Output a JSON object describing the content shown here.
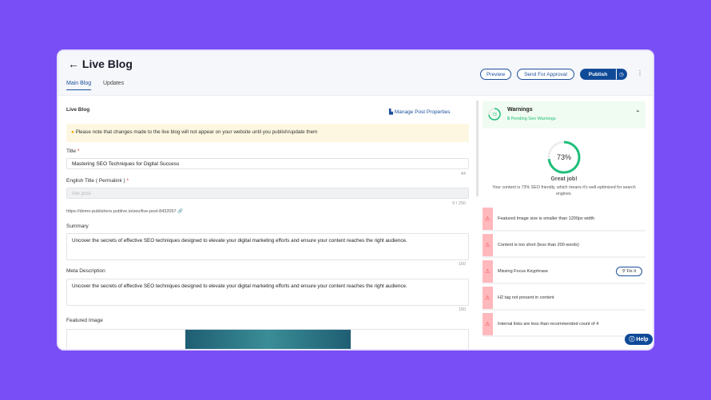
{
  "header": {
    "title": "Live Blog",
    "back_icon": "arrow-left-icon",
    "tabs": [
      {
        "label": "Main Blog",
        "active": true
      },
      {
        "label": "Updates",
        "active": false
      }
    ],
    "actions": {
      "preview": "Preview",
      "send": "Send For Approval",
      "publish": "Publish",
      "schedule_icon": "clock-icon",
      "more_icon": "kebab-icon"
    }
  },
  "form": {
    "section_title": "Live Blog",
    "manage": "Manage Post Properties",
    "notice": "Please note that changes made to the live blog will not appear on your website until you publish/update them",
    "title_label": "Title",
    "title_value": "Mastering SEO Techniques for Digital Success",
    "title_count": "44",
    "permalink_label": "English Title ( Permalink )",
    "permalink_placeholder": "live post",
    "permalink_count": "9 / 250",
    "url": "https://demo-publishers.publive.io/seo/live-post-8432057",
    "summary_label": "Summary",
    "summary_value": "Uncover the secrets of effective SEO techniques designed to elevate your digital marketing efforts and ensure your content reaches the right audience.",
    "summary_count": "150",
    "meta_label": "Meta Description",
    "meta_value": "Uncover the secrets of effective SEO techniques designed to elevate your digital marketing efforts and ensure your content reaches the right audience.",
    "meta_count": "150",
    "image_label": "Featured Image"
  },
  "seo": {
    "score": 73,
    "score_small": "73",
    "score_text": "73%",
    "title": "Warnings",
    "pending_count": "5",
    "pending_text": "Pending Seo Warnings",
    "great": "Great job!",
    "desc": "Your content is 73% SEO friendly, which means it's well-optimized for search engines.",
    "warnings": [
      "Featured Image size is smaller than 1200px width",
      "Content is too short (less than 200 words)",
      "Missing Focus Keyphrase",
      "H2 tag not present in content",
      "Internal links are less than recommended count of 4"
    ],
    "fix": "Fix it",
    "accent": "#1fbf7a"
  },
  "help": "Help",
  "colors": {
    "background": "#7a4ef6",
    "primary": "#1c4f9c"
  }
}
